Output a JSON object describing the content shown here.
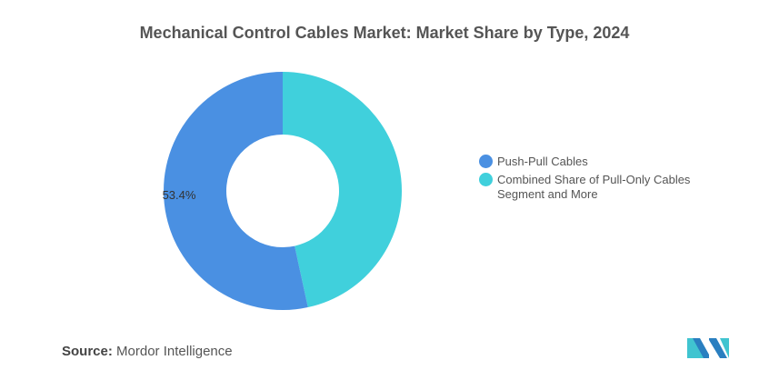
{
  "chart_data": {
    "type": "pie",
    "title": "Mechanical Control Cables Market: Market Share by Type, 2024",
    "donut": true,
    "slices": [
      {
        "label": "Push-Pull Cables",
        "value": 53.4,
        "data_label": "53.4%",
        "color": "#4a90e2"
      },
      {
        "label": "Combined Share of Pull-Only Cables Segment and More",
        "value": 46.6,
        "data_label": "",
        "color": "#40d0dc"
      }
    ],
    "legend_position": "right"
  },
  "source": {
    "label": "Source:",
    "value": "Mordor Intelligence"
  }
}
